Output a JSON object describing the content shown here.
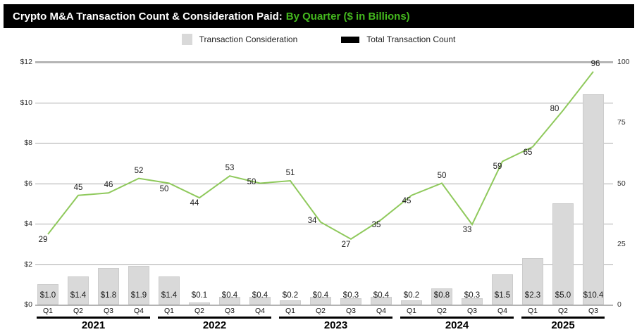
{
  "title": {
    "main": "Crypto M&A Transaction Count & Consideration Paid:",
    "highlight": "By Quarter ($ in Billions)"
  },
  "legend": {
    "items": [
      {
        "label": "Transaction Consideration"
      },
      {
        "label": "Total Transaction Count"
      }
    ]
  },
  "chart_data": {
    "type": "bar+line",
    "title": "Crypto M&A Transaction Count & Consideration Paid: By Quarter ($ in Billions)",
    "years": [
      {
        "label": "2021",
        "quarters": [
          "Q1",
          "Q2",
          "Q3",
          "Q4"
        ]
      },
      {
        "label": "2022",
        "quarters": [
          "Q1",
          "Q2",
          "Q3",
          "Q4"
        ]
      },
      {
        "label": "2023",
        "quarters": [
          "Q1",
          "Q2",
          "Q3",
          "Q4"
        ]
      },
      {
        "label": "2024",
        "quarters": [
          "Q1",
          "Q2",
          "Q3",
          "Q4"
        ]
      },
      {
        "label": "2025",
        "quarters": [
          "Q1",
          "Q2",
          "Q3"
        ]
      }
    ],
    "series": [
      {
        "name": "Transaction Consideration",
        "type": "bar",
        "axis": "left",
        "unit": "$ in Billions",
        "values": [
          1.0,
          1.4,
          1.8,
          1.9,
          1.4,
          0.1,
          0.4,
          0.4,
          0.2,
          0.4,
          0.3,
          0.4,
          0.2,
          0.8,
          0.3,
          1.5,
          2.3,
          5.0,
          10.4
        ],
        "labels": [
          "$1.0",
          "$1.4",
          "$1.8",
          "$1.9",
          "$1.4",
          "$0.1",
          "$0.4",
          "$0.4",
          "$0.2",
          "$0.4",
          "$0.3",
          "$0.4",
          "$0.2",
          "$0.8",
          "$0.3",
          "$1.5",
          "$2.3",
          "$5.0",
          "$10.4"
        ]
      },
      {
        "name": "Total Transaction Count",
        "type": "line",
        "axis": "right",
        "values": [
          29,
          45,
          46,
          52,
          50,
          44,
          53,
          50,
          51,
          34,
          27,
          35,
          45,
          50,
          33,
          59,
          65,
          80,
          96
        ]
      }
    ],
    "left_axis": {
      "min": 0,
      "max": 12,
      "ticks": [
        "$12",
        "$10",
        "$8",
        "$6",
        "$4",
        "$2",
        "$0"
      ]
    },
    "right_axis": {
      "min": 0,
      "max": 100,
      "ticks": [
        "100",
        "75",
        "50",
        "25",
        "0"
      ]
    },
    "grid": true,
    "legend_position": "top",
    "colors": {
      "bar": "#d9d9d9",
      "line": "#8fc95c",
      "legend_line": "#000000",
      "title_highlight": "#44b81e"
    }
  }
}
